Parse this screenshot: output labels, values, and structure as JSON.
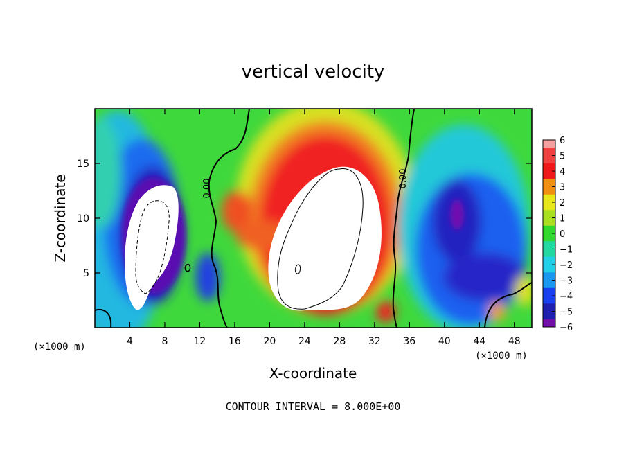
{
  "chart_data": {
    "type": "heatmap",
    "title": "vertical velocity",
    "xlabel": "X-coordinate",
    "ylabel": "Z-coordinate",
    "x_unit": "(×1000 m)",
    "x_unit_right": "(×1000 m)",
    "xlim": [
      0,
      50
    ],
    "ylim": [
      0,
      20
    ],
    "x_ticks": [
      4,
      8,
      12,
      16,
      20,
      24,
      28,
      32,
      36,
      40,
      44,
      48
    ],
    "y_ticks": [
      5,
      10,
      15
    ],
    "colorbar": {
      "levels": [
        6,
        5,
        4,
        3,
        2,
        1,
        0,
        -1,
        -2,
        -3,
        -4,
        -5,
        -6
      ],
      "labels": [
        "6",
        "5",
        "4",
        "3",
        "2",
        "1",
        "0",
        "−1",
        "−2",
        "−3",
        "−4",
        "−5",
        "−6"
      ]
    },
    "contour_labels": [
      "0.00",
      "0.00"
    ],
    "footnote": "CONTOUR INTERVAL = 8.000E+00",
    "features": [
      {
        "x": 28.5,
        "z": 9.5,
        "rx": 6.5,
        "rz": 8.0,
        "value": 9
      },
      {
        "x": 7.5,
        "z": 7.5,
        "rx": 3.0,
        "rz": 6.0,
        "value": -9
      },
      {
        "x": 16.0,
        "z": 10.5,
        "rx": 1.5,
        "rz": 2.0,
        "value": 4
      },
      {
        "x": 41.5,
        "z": 10.5,
        "rx": 3.5,
        "rz": 5.0,
        "value": -5
      },
      {
        "x": 44.0,
        "z": 6.5,
        "rx": 5.0,
        "rz": 3.5,
        "value": -4.5
      },
      {
        "x": 2.0,
        "z": 9.0,
        "rx": 3.5,
        "rz": 6.0,
        "value": -3
      },
      {
        "x": 13.0,
        "z": 5.0,
        "rx": 1.2,
        "rz": 2.5,
        "value": -4
      },
      {
        "x": 33.5,
        "z": 1.5,
        "rx": 1.2,
        "rz": 1.2,
        "value": 4
      },
      {
        "x": 46.0,
        "z": 2.0,
        "rx": 1.5,
        "rz": 1.5,
        "value": 3
      },
      {
        "x": 49.0,
        "z": 4.0,
        "rx": 1.5,
        "rz": 2.0,
        "value": 2
      }
    ]
  }
}
